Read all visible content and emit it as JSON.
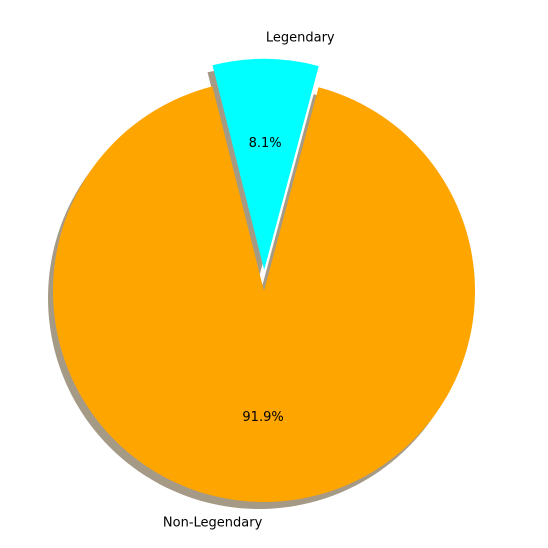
{
  "chart_data": {
    "type": "pie",
    "start_angle_deg": 75,
    "shadow": true,
    "shadow_color": "#a59a86",
    "slices": [
      {
        "label": "Legendary",
        "value": 8.1,
        "pct_label": "8.1%",
        "color": "#00ffff",
        "explode": 0.1
      },
      {
        "label": "Non-Legendary",
        "value": 91.9,
        "pct_label": "91.9%",
        "color": "#ffa500",
        "explode": 0
      }
    ]
  }
}
